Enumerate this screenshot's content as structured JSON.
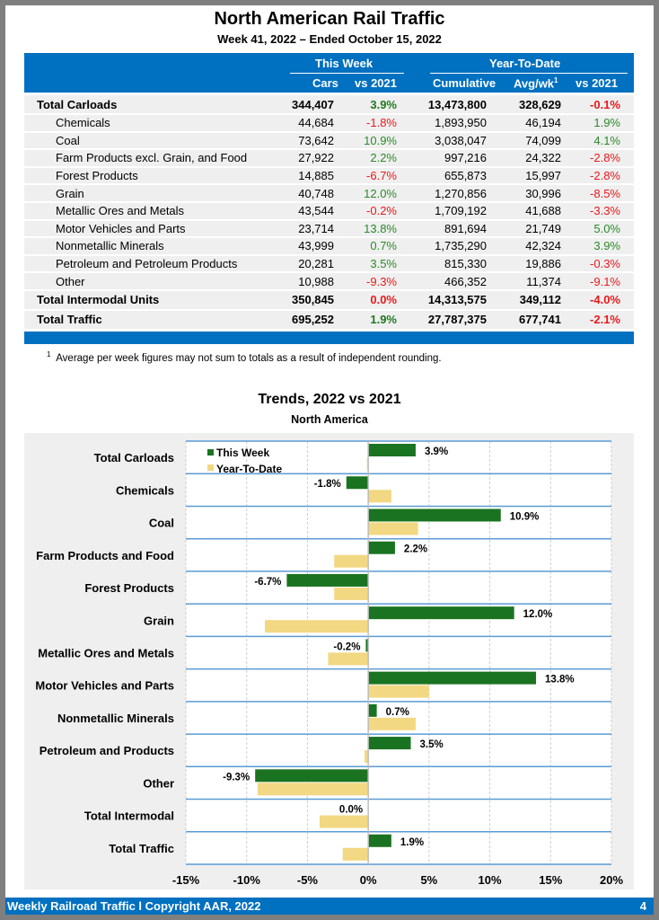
{
  "header": {
    "title": "North American Rail Traffic",
    "subtitle": "Week 41, 2022 – Ended October 15, 2022"
  },
  "table": {
    "group_this_week": "This Week",
    "group_ytd": "Year-To-Date",
    "columns": [
      "Cars",
      "vs 2021",
      "Cumulative",
      "Avg/wk",
      "vs 2021"
    ],
    "avg_footnote_mark": "1",
    "rows": [
      {
        "label": "Total Carloads",
        "bold": true,
        "cars": "344,407",
        "vs_week": "3.9%",
        "cumulative": "13,473,800",
        "avg": "328,629",
        "vs_ytd": "-0.1%"
      },
      {
        "label": "Chemicals",
        "bold": false,
        "cars": "44,684",
        "vs_week": "-1.8%",
        "cumulative": "1,893,950",
        "avg": "46,194",
        "vs_ytd": "1.9%"
      },
      {
        "label": "Coal",
        "bold": false,
        "cars": "73,642",
        "vs_week": "10.9%",
        "cumulative": "3,038,047",
        "avg": "74,099",
        "vs_ytd": "4.1%"
      },
      {
        "label": "Farm Products excl. Grain, and Food",
        "bold": false,
        "cars": "27,922",
        "vs_week": "2.2%",
        "cumulative": "997,216",
        "avg": "24,322",
        "vs_ytd": "-2.8%"
      },
      {
        "label": "Forest Products",
        "bold": false,
        "cars": "14,885",
        "vs_week": "-6.7%",
        "cumulative": "655,873",
        "avg": "15,997",
        "vs_ytd": "-2.8%"
      },
      {
        "label": "Grain",
        "bold": false,
        "cars": "40,748",
        "vs_week": "12.0%",
        "cumulative": "1,270,856",
        "avg": "30,996",
        "vs_ytd": "-8.5%"
      },
      {
        "label": "Metallic Ores and Metals",
        "bold": false,
        "cars": "43,544",
        "vs_week": "-0.2%",
        "cumulative": "1,709,192",
        "avg": "41,688",
        "vs_ytd": "-3.3%"
      },
      {
        "label": "Motor Vehicles and Parts",
        "bold": false,
        "cars": "23,714",
        "vs_week": "13.8%",
        "cumulative": "891,694",
        "avg": "21,749",
        "vs_ytd": "5.0%"
      },
      {
        "label": "Nonmetallic Minerals",
        "bold": false,
        "cars": "43,999",
        "vs_week": "0.7%",
        "cumulative": "1,735,290",
        "avg": "42,324",
        "vs_ytd": "3.9%"
      },
      {
        "label": "Petroleum and Petroleum Products",
        "bold": false,
        "cars": "20,281",
        "vs_week": "3.5%",
        "cumulative": "815,330",
        "avg": "19,886",
        "vs_ytd": "-0.3%"
      },
      {
        "label": "Other",
        "bold": false,
        "cars": "10,988",
        "vs_week": "-9.3%",
        "cumulative": "466,352",
        "avg": "11,374",
        "vs_ytd": "-9.1%"
      },
      {
        "label": "Total Intermodal Units",
        "bold": true,
        "cars": "350,845",
        "vs_week": "0.0%",
        "cumulative": "14,313,575",
        "avg": "349,112",
        "vs_ytd": "-4.0%"
      },
      {
        "label": "Total Traffic",
        "bold": true,
        "cars": "695,252",
        "vs_week": "1.9%",
        "cumulative": "27,787,375",
        "avg": "677,741",
        "vs_ytd": "-2.1%"
      }
    ],
    "footnote_mark": "1",
    "footnote": "Average per week figures may not sum to totals as a result of independent rounding."
  },
  "colors": {
    "brand_blue": "#0070c0",
    "this_week": "#1a7320",
    "ytd": "#f2d883",
    "positive_text": "#2a8a2a",
    "negative_text": "#e8191b",
    "row_separator": "#5b9bd5"
  },
  "chart_data": {
    "type": "bar",
    "orientation": "horizontal",
    "title": "Trends, 2022 vs 2021",
    "subtitle": "North America",
    "categories": [
      "Total Carloads",
      "Chemicals",
      "Coal",
      "Farm Products and Food",
      "Forest Products",
      "Grain",
      "Metallic Ores and Metals",
      "Motor Vehicles and Parts",
      "Nonmetallic Minerals",
      "Petroleum and Products",
      "Other",
      "Total Intermodal",
      "Total Traffic"
    ],
    "series": [
      {
        "name": "This Week",
        "values": [
          3.9,
          -1.8,
          10.9,
          2.2,
          -6.7,
          12.0,
          -0.2,
          13.8,
          0.7,
          3.5,
          -9.3,
          0.0,
          1.9
        ],
        "labels": [
          "3.9%",
          "-1.8%",
          "10.9%",
          "2.2%",
          "-6.7%",
          "12.0%",
          "-0.2%",
          "13.8%",
          "0.7%",
          "3.5%",
          "-9.3%",
          "0.0%",
          "1.9%"
        ]
      },
      {
        "name": "Year-To-Date",
        "values": [
          -0.1,
          1.9,
          4.1,
          -2.8,
          -2.8,
          -8.5,
          -3.3,
          5.0,
          3.9,
          -0.3,
          -9.1,
          -4.0,
          -2.1
        ]
      }
    ],
    "xlim": [
      -15,
      20
    ],
    "xticks": [
      -15,
      -10,
      -5,
      0,
      5,
      10,
      15,
      20
    ],
    "xtick_labels": [
      "-15%",
      "-10%",
      "-5%",
      "0%",
      "5%",
      "10%",
      "15%",
      "20%"
    ],
    "xlabel": "",
    "ylabel": "",
    "grid": true,
    "legend": "top-left"
  },
  "footer": {
    "left": "Weekly Railroad Traffic l Copyright AAR, 2022",
    "page": "4"
  }
}
